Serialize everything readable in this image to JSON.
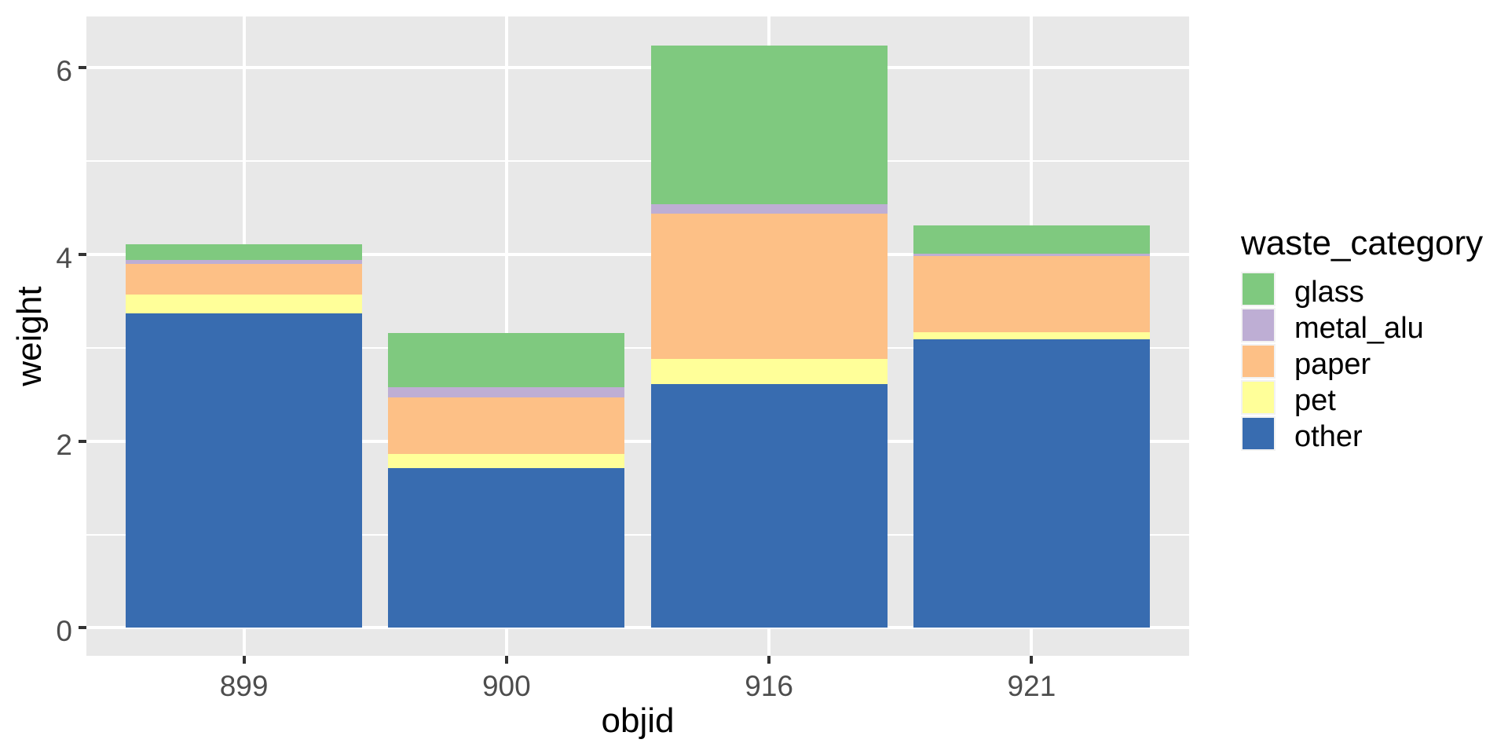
{
  "figure": {
    "background": "#FFFFFF",
    "panel_background": "#E8E8E8",
    "grid_color": "#FFFFFF",
    "tick_color": "#333333",
    "tick_label_color": "#4D4D4D"
  },
  "chart_data": {
    "type": "bar",
    "stacked": true,
    "xlabel": "objid",
    "ylabel": "weight",
    "categories": [
      "899",
      "900",
      "916",
      "921"
    ],
    "series": [
      {
        "name": "other",
        "color": "#386CB0",
        "values": [
          3.37,
          1.71,
          2.61,
          3.09
        ]
      },
      {
        "name": "pet",
        "color": "#FFFF99",
        "values": [
          0.2,
          0.15,
          0.27,
          0.08
        ]
      },
      {
        "name": "paper",
        "color": "#FDC086",
        "values": [
          0.33,
          0.61,
          1.56,
          0.81
        ]
      },
      {
        "name": "metal_alu",
        "color": "#BEAED4",
        "values": [
          0.04,
          0.11,
          0.1,
          0.03
        ]
      },
      {
        "name": "glass",
        "color": "#7FC97F",
        "values": [
          0.17,
          0.58,
          1.7,
          0.3
        ]
      }
    ],
    "stack_totals": [
      4.11,
      3.16,
      6.24,
      4.31
    ],
    "y_breaks": [
      0,
      2,
      4,
      6
    ],
    "y_break_labels": [
      "0",
      "2",
      "4",
      "6"
    ],
    "y_minor_breaks": [
      1,
      3,
      5
    ],
    "ylim": [
      -0.3,
      6.55
    ],
    "grid": true,
    "legend": {
      "title": "waste_category",
      "position": "right",
      "entries": [
        {
          "label": "glass",
          "color": "#7FC97F"
        },
        {
          "label": "metal_alu",
          "color": "#BEAED4"
        },
        {
          "label": "paper",
          "color": "#FDC086"
        },
        {
          "label": "pet",
          "color": "#FFFF99"
        },
        {
          "label": "other",
          "color": "#386CB0"
        }
      ]
    }
  }
}
